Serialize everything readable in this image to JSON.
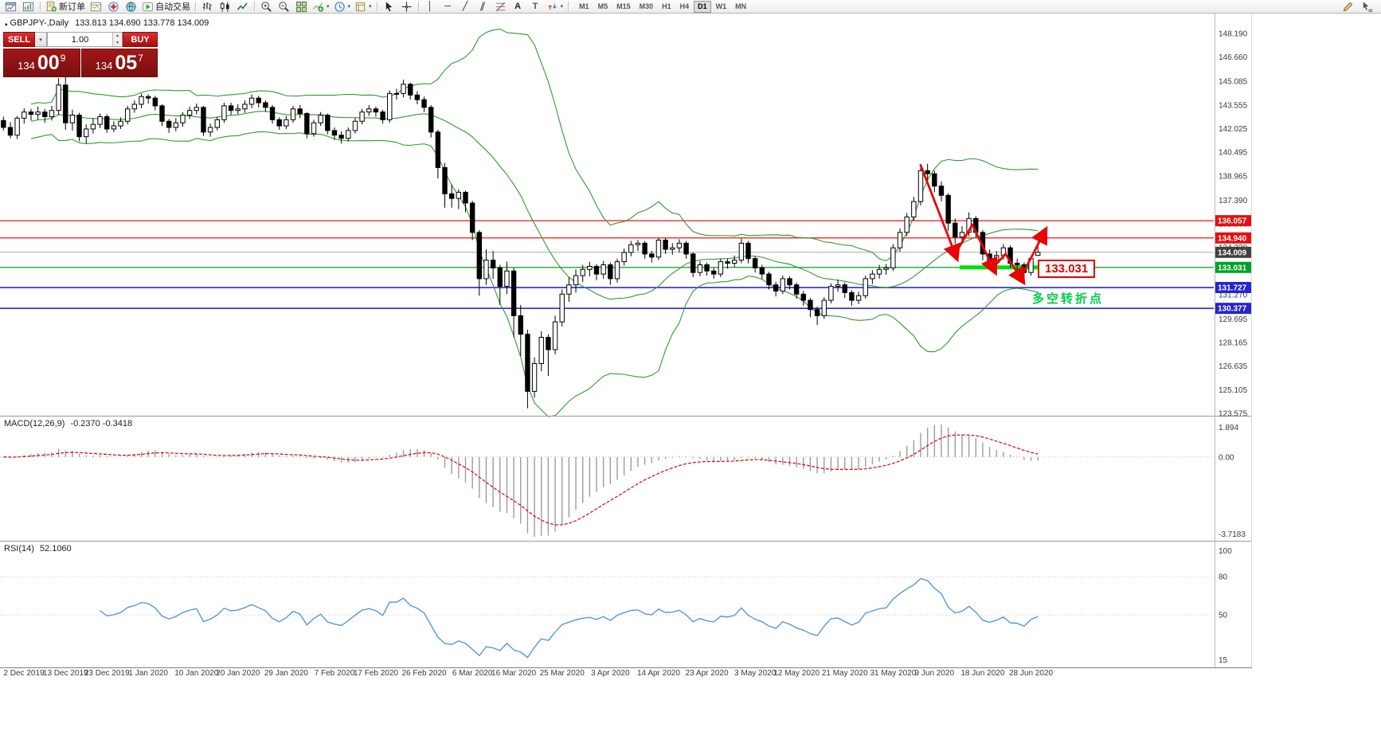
{
  "toolbar": {
    "new_order": "新订单",
    "autotrading": "自动交易",
    "timeframes": [
      "M1",
      "M5",
      "M15",
      "M30",
      "H1",
      "H4",
      "D1",
      "W1",
      "MN"
    ],
    "active_timeframe": "D1"
  },
  "icons": {
    "vline": "│",
    "hline": "─",
    "trendline": "╱",
    "channel": "∥",
    "text_tool": "A",
    "label_tool": "T",
    "caret": "▾",
    "up": "▴",
    "down": "▾",
    "symbol_marker": "▴"
  },
  "chart_header": {
    "symbol": "GBPJPY-,Daily",
    "ohlc": "133.813 134.690 133.778 134.009"
  },
  "trade_panel": {
    "sell": "SELL",
    "buy": "BUY",
    "volume": "1.00",
    "bid": {
      "main": "134",
      "pips": "00",
      "point": "9"
    },
    "ask": {
      "main": "134",
      "pips": "05",
      "point": "7"
    }
  },
  "annotations": {
    "support_price": "133.031",
    "turning_point": "多空转折点"
  },
  "indicators": {
    "macd": {
      "title": "MACD(12,26,9)",
      "values": "-0.2370 -0.3418",
      "axis_max": "1.894",
      "axis_zero": "0.00",
      "axis_min": "-3.7183"
    },
    "rsi": {
      "title": "RSI(14)",
      "value": "52.1060",
      "period": 14,
      "axis_labels": [
        "100",
        "80",
        "50",
        "15"
      ],
      "levels": [
        80,
        50
      ]
    }
  },
  "price_axis": {
    "ticks": [
      "148.190",
      "146.660",
      "145.085",
      "143.555",
      "142.025",
      "140.495",
      "138.965",
      "137.390",
      "135.860",
      "134.330",
      "131.270",
      "129.695",
      "128.165",
      "126.635",
      "125.105",
      "123.575"
    ],
    "tags": [
      {
        "t": "136.057",
        "bg": "#e11212"
      },
      {
        "t": "134.940",
        "bg": "#e11212"
      },
      {
        "t": "134.009",
        "bg": "#404040"
      },
      {
        "t": "133.031",
        "bg": "#00a226"
      },
      {
        "t": "131.727",
        "bg": "#2525cf"
      },
      {
        "t": "130.377",
        "bg": "#2525cf"
      }
    ]
  },
  "chart_data": {
    "type": "candlestick",
    "symbol": "GBPJPY",
    "timeframe": "Daily",
    "shift_bars": 25,
    "ohlc": [
      [
        142.55,
        142.8,
        141.9,
        142.1
      ],
      [
        142.1,
        142.45,
        141.4,
        141.6
      ],
      [
        141.6,
        142.85,
        141.35,
        142.7
      ],
      [
        142.7,
        143.35,
        142.35,
        143.1
      ],
      [
        143.1,
        143.3,
        142.55,
        142.95
      ],
      [
        142.95,
        143.45,
        142.6,
        143.1
      ],
      [
        143.1,
        143.3,
        142.4,
        142.8
      ],
      [
        142.8,
        143.5,
        142.55,
        143.2
      ],
      [
        143.2,
        145.3,
        142.9,
        144.85
      ],
      [
        144.85,
        145.4,
        141.95,
        142.4
      ],
      [
        142.4,
        143.25,
        141.9,
        142.9
      ],
      [
        142.9,
        143.05,
        141.2,
        141.5
      ],
      [
        141.5,
        142.3,
        141.05,
        142.0
      ],
      [
        142.0,
        142.7,
        141.7,
        142.3
      ],
      [
        142.3,
        143.0,
        142.05,
        142.8
      ],
      [
        142.8,
        142.95,
        141.75,
        142.0
      ],
      [
        142.0,
        142.5,
        141.8,
        142.2
      ],
      [
        142.2,
        142.75,
        142.0,
        142.5
      ],
      [
        142.5,
        143.5,
        142.3,
        143.3
      ],
      [
        143.3,
        143.85,
        143.05,
        143.6
      ],
      [
        143.6,
        144.3,
        143.35,
        144.1
      ],
      [
        144.1,
        144.25,
        143.65,
        144.0
      ],
      [
        144.0,
        144.15,
        143.2,
        143.5
      ],
      [
        143.5,
        143.6,
        142.2,
        142.5
      ],
      [
        142.5,
        142.65,
        141.75,
        142.1
      ],
      [
        142.1,
        142.7,
        141.85,
        142.4
      ],
      [
        142.4,
        143.1,
        142.15,
        142.9
      ],
      [
        142.9,
        143.45,
        142.65,
        143.2
      ],
      [
        143.2,
        143.65,
        142.95,
        143.4
      ],
      [
        143.4,
        143.5,
        141.55,
        141.8
      ],
      [
        141.8,
        142.35,
        141.5,
        142.1
      ],
      [
        142.1,
        142.8,
        141.9,
        142.6
      ],
      [
        142.6,
        143.7,
        142.4,
        143.5
      ],
      [
        143.5,
        143.7,
        142.9,
        143.2
      ],
      [
        143.2,
        143.6,
        142.95,
        143.3
      ],
      [
        143.3,
        143.85,
        143.05,
        143.6
      ],
      [
        143.6,
        144.25,
        143.35,
        144.0
      ],
      [
        144.0,
        144.15,
        143.4,
        143.7
      ],
      [
        143.7,
        143.85,
        143.1,
        143.4
      ],
      [
        143.4,
        143.55,
        142.35,
        142.6
      ],
      [
        142.6,
        142.75,
        141.95,
        142.2
      ],
      [
        142.2,
        142.85,
        142.0,
        142.6
      ],
      [
        142.6,
        143.5,
        142.4,
        143.3
      ],
      [
        143.3,
        143.55,
        142.7,
        143.0
      ],
      [
        143.0,
        143.1,
        141.4,
        141.7
      ],
      [
        141.7,
        142.6,
        141.5,
        142.4
      ],
      [
        142.4,
        143.1,
        142.2,
        142.9
      ],
      [
        142.9,
        143.0,
        141.65,
        141.9
      ],
      [
        141.9,
        142.1,
        141.3,
        141.6
      ],
      [
        141.6,
        141.85,
        141.05,
        141.4
      ],
      [
        141.4,
        142.1,
        141.2,
        141.9
      ],
      [
        141.9,
        142.7,
        141.7,
        142.5
      ],
      [
        142.5,
        143.3,
        142.3,
        143.1
      ],
      [
        143.1,
        143.55,
        142.85,
        143.3
      ],
      [
        143.3,
        143.45,
        142.8,
        143.1
      ],
      [
        143.1,
        143.25,
        142.35,
        142.6
      ],
      [
        142.6,
        144.5,
        142.4,
        144.3
      ],
      [
        144.3,
        144.6,
        143.9,
        144.3
      ],
      [
        144.3,
        145.2,
        144.05,
        144.9
      ],
      [
        144.9,
        145.0,
        143.9,
        144.2
      ],
      [
        144.2,
        144.45,
        143.6,
        143.9
      ],
      [
        143.9,
        144.1,
        143.1,
        143.4
      ],
      [
        143.4,
        143.55,
        141.45,
        141.8
      ],
      [
        141.8,
        141.95,
        138.8,
        139.5
      ],
      [
        139.5,
        139.8,
        136.9,
        137.8
      ],
      [
        137.8,
        138.4,
        136.9,
        137.5
      ],
      [
        137.5,
        138.1,
        136.8,
        137.9
      ],
      [
        137.9,
        138.0,
        136.6,
        137.2
      ],
      [
        137.2,
        137.35,
        134.8,
        135.3
      ],
      [
        135.3,
        135.45,
        131.2,
        132.3
      ],
      [
        132.3,
        134.2,
        131.9,
        133.5
      ],
      [
        133.5,
        134.1,
        132.3,
        133.0
      ],
      [
        133.0,
        133.2,
        130.6,
        131.8
      ],
      [
        131.8,
        133.4,
        131.3,
        132.8
      ],
      [
        132.8,
        133.0,
        128.5,
        129.9
      ],
      [
        129.9,
        130.6,
        127.3,
        128.7
      ],
      [
        128.7,
        129.0,
        123.9,
        125.0
      ],
      [
        125.0,
        127.2,
        124.6,
        126.8
      ],
      [
        126.8,
        128.9,
        126.3,
        128.5
      ],
      [
        128.5,
        128.7,
        126.0,
        127.7
      ],
      [
        127.7,
        129.9,
        127.4,
        129.5
      ],
      [
        129.5,
        131.6,
        129.2,
        131.3
      ],
      [
        131.3,
        132.4,
        130.8,
        131.9
      ],
      [
        131.9,
        132.9,
        131.4,
        132.5
      ],
      [
        132.5,
        133.2,
        132.1,
        132.9
      ],
      [
        132.9,
        133.4,
        132.45,
        133.1
      ],
      [
        133.1,
        133.25,
        132.2,
        132.6
      ],
      [
        132.6,
        133.45,
        132.3,
        133.2
      ],
      [
        133.2,
        133.35,
        131.9,
        132.3
      ],
      [
        132.3,
        133.6,
        132.05,
        133.4
      ],
      [
        133.4,
        134.25,
        133.15,
        134.0
      ],
      [
        134.0,
        134.75,
        133.75,
        134.5
      ],
      [
        134.5,
        134.8,
        134.1,
        134.6
      ],
      [
        134.6,
        134.75,
        133.6,
        133.9
      ],
      [
        133.9,
        134.1,
        133.35,
        133.7
      ],
      [
        133.7,
        134.95,
        133.5,
        134.8
      ],
      [
        134.8,
        134.95,
        133.9,
        134.2
      ],
      [
        134.2,
        134.6,
        133.85,
        134.3
      ],
      [
        134.3,
        134.85,
        134.0,
        134.6
      ],
      [
        134.6,
        134.75,
        133.6,
        133.9
      ],
      [
        133.9,
        134.0,
        132.4,
        132.7
      ],
      [
        132.7,
        133.45,
        132.45,
        133.2
      ],
      [
        133.2,
        133.35,
        132.5,
        132.8
      ],
      [
        132.8,
        133.0,
        132.3,
        132.6
      ],
      [
        132.6,
        133.6,
        132.4,
        133.4
      ],
      [
        133.4,
        133.6,
        132.95,
        133.3
      ],
      [
        133.3,
        133.8,
        133.05,
        133.5
      ],
      [
        133.5,
        134.9,
        133.3,
        134.6
      ],
      [
        134.6,
        134.75,
        133.3,
        133.6
      ],
      [
        133.6,
        133.75,
        132.7,
        133.0
      ],
      [
        133.0,
        133.2,
        132.3,
        132.6
      ],
      [
        132.6,
        132.75,
        131.6,
        131.9
      ],
      [
        131.9,
        132.1,
        131.15,
        131.5
      ],
      [
        131.5,
        132.5,
        131.3,
        132.3
      ],
      [
        132.3,
        132.45,
        131.6,
        131.9
      ],
      [
        131.9,
        132.05,
        131.0,
        131.3
      ],
      [
        131.3,
        131.5,
        130.55,
        130.9
      ],
      [
        130.9,
        131.05,
        129.8,
        130.3
      ],
      [
        130.3,
        130.5,
        129.3,
        129.9
      ],
      [
        129.9,
        131.1,
        129.7,
        130.9
      ],
      [
        130.9,
        132.0,
        130.7,
        131.8
      ],
      [
        131.8,
        132.25,
        131.45,
        131.9
      ],
      [
        131.9,
        132.05,
        131.05,
        131.4
      ],
      [
        131.4,
        131.55,
        130.55,
        130.9
      ],
      [
        130.9,
        131.45,
        130.65,
        131.2
      ],
      [
        131.2,
        132.5,
        131.0,
        132.3
      ],
      [
        132.3,
        132.85,
        131.95,
        132.6
      ],
      [
        132.6,
        133.2,
        132.3,
        132.9
      ],
      [
        132.9,
        133.25,
        132.55,
        133.0
      ],
      [
        133.0,
        134.55,
        132.8,
        134.3
      ],
      [
        134.3,
        135.55,
        134.05,
        135.3
      ],
      [
        135.3,
        136.55,
        135.05,
        136.3
      ],
      [
        136.3,
        137.6,
        136.05,
        137.3
      ],
      [
        137.3,
        139.7,
        137.05,
        139.3
      ],
      [
        139.3,
        139.75,
        138.6,
        139.1
      ],
      [
        139.1,
        139.3,
        137.9,
        138.3
      ],
      [
        138.3,
        138.6,
        137.3,
        137.7
      ],
      [
        137.7,
        137.85,
        135.4,
        135.9
      ],
      [
        135.9,
        136.2,
        134.55,
        135.0
      ],
      [
        135.0,
        135.7,
        134.6,
        135.3
      ],
      [
        135.3,
        136.6,
        135.05,
        136.2
      ],
      [
        136.2,
        136.35,
        135.0,
        135.3
      ],
      [
        135.3,
        135.45,
        133.5,
        133.9
      ],
      [
        133.9,
        134.2,
        133.1,
        133.5
      ],
      [
        133.5,
        134.1,
        133.25,
        133.8
      ],
      [
        133.8,
        134.55,
        133.55,
        134.3
      ],
      [
        134.3,
        134.45,
        133.0,
        133.3
      ],
      [
        133.3,
        133.6,
        132.8,
        133.2
      ],
      [
        133.2,
        133.35,
        132.3,
        132.7
      ],
      [
        132.7,
        133.75,
        132.5,
        133.6
      ],
      [
        133.81,
        134.69,
        133.78,
        134.01
      ]
    ],
    "date_labels": [
      {
        "label": "2 Dec 2019",
        "i": 0
      },
      {
        "label": "13 Dec 2019",
        "i": 9
      },
      {
        "label": "23 Dec 2019",
        "i": 15
      },
      {
        "label": "1 Jan 2020",
        "i": 21
      },
      {
        "label": "10 Jan 2020",
        "i": 28
      },
      {
        "label": "20 Jan 2020",
        "i": 34
      },
      {
        "label": "29 Jan 2020",
        "i": 41
      },
      {
        "label": "7 Feb 2020",
        "i": 48
      },
      {
        "label": "17 Feb 2020",
        "i": 54
      },
      {
        "label": "26 Feb 2020",
        "i": 61
      },
      {
        "label": "6 Mar 2020",
        "i": 68
      },
      {
        "label": "16 Mar 2020",
        "i": 74
      },
      {
        "label": "25 Mar 2020",
        "i": 81
      },
      {
        "label": "3 Apr 2020",
        "i": 88
      },
      {
        "label": "14 Apr 2020",
        "i": 95
      },
      {
        "label": "23 Apr 2020",
        "i": 102
      },
      {
        "label": "3 May 2020",
        "i": 109
      },
      {
        "label": "12 May 2020",
        "i": 115
      },
      {
        "label": "21 May 2020",
        "i": 122
      },
      {
        "label": "31 May 2020",
        "i": 129
      },
      {
        "label": "9 Jun 2020",
        "i": 135
      },
      {
        "label": "18 Jun 2020",
        "i": 142
      },
      {
        "label": "28 Jun 2020",
        "i": 149
      }
    ],
    "hlines": [
      {
        "p": 136.057,
        "c": "#f01414",
        "w": 1.2
      },
      {
        "p": 134.94,
        "c": "#f01414",
        "w": 1.2
      },
      {
        "p": 134.009,
        "c": "#ababab",
        "w": 1
      },
      {
        "p": 133.031,
        "c": "#00a31c",
        "w": 1.3
      },
      {
        "p": 131.727,
        "c": "#2a2ad2",
        "w": 1.6
      },
      {
        "p": 130.377,
        "c": "#2a2ad2",
        "w": 1.6
      }
    ],
    "support_segment": {
      "price": 133.031,
      "from": 139,
      "to": 150,
      "color": "#00e10a"
    },
    "zigzag": {
      "color": "#e80505",
      "points": [
        [
          133,
          139.65
        ],
        [
          138,
          133.9
        ],
        [
          140.5,
          135.8
        ],
        [
          143.5,
          133.0
        ],
        [
          145.3,
          133.9
        ],
        [
          147.5,
          132.35
        ],
        [
          150.8,
          135.2
        ]
      ],
      "arrow_segments": [
        0,
        2,
        4,
        5
      ]
    },
    "bollinger": {
      "period": 20,
      "deviation": 2,
      "color": "#2f9b2f"
    }
  }
}
